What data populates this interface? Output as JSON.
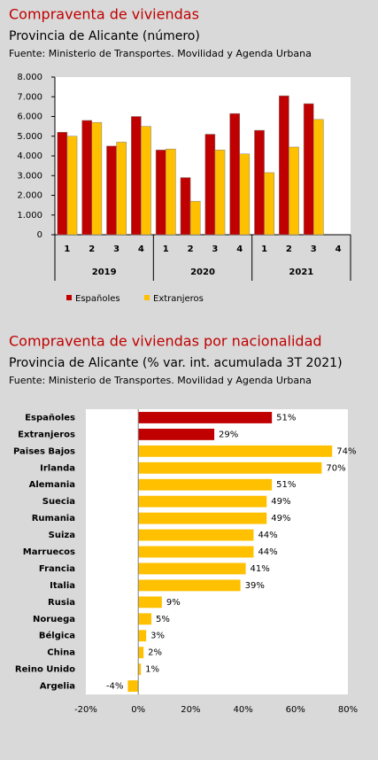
{
  "chart_data": [
    {
      "type": "bar",
      "title": "Compraventa de viviendas",
      "subtitle": "Provincia de Alicante (número)",
      "source": "Fuente: Ministerio de Transportes. Movilidad y Agenda Urbana",
      "categories": [
        "1",
        "2",
        "3",
        "4",
        "1",
        "2",
        "3",
        "4",
        "1",
        "2",
        "3",
        "4"
      ],
      "years": [
        "2019",
        "2020",
        "2021"
      ],
      "series": [
        {
          "name": "Españoles",
          "color": "#c00000",
          "values": [
            5200,
            5800,
            4500,
            6000,
            4300,
            2900,
            5100,
            6150,
            5300,
            7050,
            6650,
            null
          ]
        },
        {
          "name": "Extranjeros",
          "color": "#ffc000",
          "values": [
            5000,
            5700,
            4700,
            5500,
            4350,
            1700,
            4300,
            4100,
            3150,
            4450,
            5850,
            null
          ]
        }
      ],
      "ylim": [
        0,
        8000
      ],
      "yticks": [
        0,
        {
          "value": 1000,
          "label": "1.000"
        },
        {
          "value": 2000,
          "label": "2.000"
        },
        {
          "value": 3000,
          "label": "3.000"
        },
        {
          "value": 4000,
          "label": "4.000"
        },
        {
          "value": 5000,
          "label": "5.000"
        },
        {
          "value": 6000,
          "label": "6.000"
        },
        {
          "value": 7000,
          "label": "7.000"
        },
        {
          "value": 8000,
          "label": "8.000"
        }
      ],
      "grid": false,
      "legend": "bottom"
    },
    {
      "type": "hbar",
      "title": "Compraventa de viviendas por nacionalidad",
      "subtitle": "Provincia de Alicante (% var. int. acumulada 3T 2021)",
      "source": "Fuente: Ministerio de Transportes. Movilidad y Agenda Urbana",
      "categories": [
        "Españoles",
        "Extranjeros",
        "Paises Bajos",
        "Irlanda",
        "Alemania",
        "Suecia",
        "Rumania",
        "Suiza",
        "Marruecos",
        "Francia",
        "Italia",
        "Rusia",
        "Noruega",
        "Bélgica",
        "China",
        "Reino Unido",
        "Argelia"
      ],
      "values": [
        51,
        29,
        74,
        70,
        51,
        49,
        49,
        44,
        44,
        41,
        39,
        9,
        5,
        3,
        2,
        1,
        -4
      ],
      "value_labels": [
        "51%",
        "29%",
        "74%",
        "70%",
        "51%",
        "49%",
        "49%",
        "44%",
        "44%",
        "41%",
        "39%",
        "9%",
        "5%",
        "3%",
        "2%",
        "1%",
        "-4%"
      ],
      "colors": [
        "#c00000",
        "#c00000",
        "#ffc000",
        "#ffc000",
        "#ffc000",
        "#ffc000",
        "#ffc000",
        "#ffc000",
        "#ffc000",
        "#ffc000",
        "#ffc000",
        "#ffc000",
        "#ffc000",
        "#ffc000",
        "#ffc000",
        "#ffc000",
        "#ffc000"
      ],
      "xlim": [
        -20,
        80
      ],
      "xticks": [
        {
          "value": -20,
          "label": "-20%"
        },
        {
          "value": 0,
          "label": "0%"
        },
        {
          "value": 20,
          "label": "20%"
        },
        {
          "value": 40,
          "label": "40%"
        },
        {
          "value": 60,
          "label": "60%"
        },
        {
          "value": 80,
          "label": "80%"
        }
      ],
      "grid": false
    }
  ]
}
